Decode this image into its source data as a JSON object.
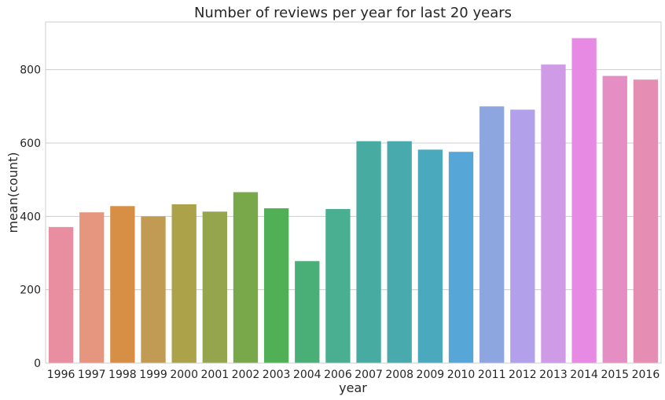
{
  "chart_data": {
    "type": "bar",
    "title": "Number of reviews per year for last 20 years",
    "xlabel": "year",
    "ylabel": "mean(count)",
    "categories": [
      "1996",
      "1997",
      "1998",
      "1999",
      "2000",
      "2001",
      "2002",
      "2003",
      "2004",
      "2006",
      "2007",
      "2008",
      "2009",
      "2010",
      "2011",
      "2012",
      "2013",
      "2014",
      "2015",
      "2016"
    ],
    "values": [
      371,
      411,
      428,
      400,
      433,
      413,
      466,
      422,
      278,
      420,
      605,
      605,
      582,
      576,
      700,
      691,
      814,
      886,
      783,
      773
    ],
    "ylim": [
      0,
      930
    ],
    "yticks": [
      0,
      200,
      400,
      600,
      800
    ],
    "grid": true,
    "colors": [
      "#e88ea0",
      "#e6967e",
      "#d78f46",
      "#c19a53",
      "#aba24a",
      "#95a54e",
      "#78a84a",
      "#51b055",
      "#49af77",
      "#4aae91",
      "#47aba1",
      "#49aaae",
      "#4aa9bc",
      "#56a6d7",
      "#8ea6e0",
      "#b2a1ea",
      "#cf9ae6",
      "#e78ae4",
      "#e48ec4",
      "#e58db3"
    ]
  }
}
